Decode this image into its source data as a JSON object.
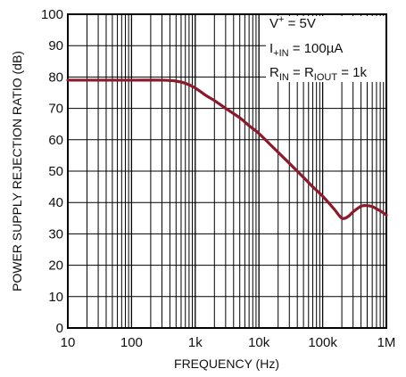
{
  "chart_data": {
    "type": "line",
    "xlabel": "FREQUENCY (Hz)",
    "ylabel": "POWER SUPPLY REJECTION RATIO (dB)",
    "x_scale": "log",
    "xlim": [
      10,
      1000000
    ],
    "ylim": [
      0,
      100
    ],
    "grid": true,
    "x_ticks": [
      {
        "value": 10,
        "label": "10"
      },
      {
        "value": 100,
        "label": "100"
      },
      {
        "value": 1000,
        "label": "1k"
      },
      {
        "value": 10000,
        "label": "10k"
      },
      {
        "value": 100000,
        "label": "100k"
      },
      {
        "value": 1000000,
        "label": "1M"
      }
    ],
    "y_ticks": [
      {
        "value": 0,
        "label": "0"
      },
      {
        "value": 10,
        "label": "10"
      },
      {
        "value": 20,
        "label": "20"
      },
      {
        "value": 30,
        "label": "30"
      },
      {
        "value": 40,
        "label": "40"
      },
      {
        "value": 50,
        "label": "50"
      },
      {
        "value": 60,
        "label": "60"
      },
      {
        "value": 70,
        "label": "70"
      },
      {
        "value": 80,
        "label": "80"
      },
      {
        "value": 90,
        "label": "90"
      },
      {
        "value": 100,
        "label": "100"
      }
    ],
    "annotations": {
      "line1": {
        "main": "V",
        "sup": "+",
        "rest": " = 5V"
      },
      "line2": {
        "main": "I",
        "sub": "+IN",
        "rest": " = 100µA"
      },
      "line3": {
        "main": "R",
        "sub": "IN",
        "mid": " = R",
        "sub2": "IOUT",
        "rest": " = 1k"
      }
    },
    "series": [
      {
        "color": "#8b1a2b",
        "points": [
          [
            10,
            79
          ],
          [
            100,
            79
          ],
          [
            300,
            79
          ],
          [
            500,
            78.7
          ],
          [
            700,
            78
          ],
          [
            1000,
            76.5
          ],
          [
            1500,
            74
          ],
          [
            2000,
            72.5
          ],
          [
            3000,
            70
          ],
          [
            5000,
            67
          ],
          [
            7000,
            64.5
          ],
          [
            10000,
            62
          ],
          [
            15000,
            58.5
          ],
          [
            20000,
            56
          ],
          [
            30000,
            52.5
          ],
          [
            50000,
            48
          ],
          [
            70000,
            45
          ],
          [
            100000,
            42
          ],
          [
            150000,
            38
          ],
          [
            200000,
            35
          ],
          [
            250000,
            35.5
          ],
          [
            300000,
            37
          ],
          [
            400000,
            38.8
          ],
          [
            500000,
            39
          ],
          [
            600000,
            38.7
          ],
          [
            700000,
            38
          ],
          [
            850000,
            37
          ],
          [
            1000000,
            36
          ]
        ]
      }
    ]
  }
}
